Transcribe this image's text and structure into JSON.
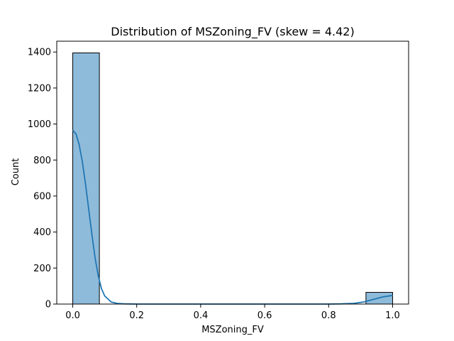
{
  "chart_data": {
    "type": "bar",
    "title": "Distribution of MSZoning_FV (skew = 4.42)",
    "xlabel": "MSZoning_FV",
    "ylabel": "Count",
    "xlim": [
      -0.05,
      1.05
    ],
    "ylim": [
      0,
      1460
    ],
    "grid": false,
    "bins": [
      {
        "x0": 0.0,
        "x1": 0.0833,
        "count": 1395
      },
      {
        "x0": 0.9167,
        "x1": 1.0,
        "count": 65
      }
    ],
    "kde": {
      "x": [
        0.0,
        0.01,
        0.02,
        0.03,
        0.04,
        0.05,
        0.06,
        0.07,
        0.08,
        0.09,
        0.1,
        0.12,
        0.14,
        0.16,
        0.2,
        0.3,
        0.5,
        0.7,
        0.8,
        0.84,
        0.88,
        0.91,
        0.94,
        0.97,
        1.0
      ],
      "y": [
        965,
        945,
        885,
        790,
        665,
        525,
        385,
        255,
        155,
        85,
        45,
        12,
        3,
        1,
        0,
        0,
        0,
        0,
        0,
        1,
        4,
        12,
        26,
        40,
        48
      ]
    },
    "xticks": [
      0.0,
      0.2,
      0.4,
      0.6,
      0.8,
      1.0
    ],
    "xtick_labels": [
      "0.0",
      "0.2",
      "0.4",
      "0.6",
      "0.8",
      "1.0"
    ],
    "yticks": [
      0,
      200,
      400,
      600,
      800,
      1000,
      1200,
      1400
    ],
    "ytick_labels": [
      "0",
      "200",
      "400",
      "600",
      "800",
      "1000",
      "1200",
      "1400"
    ],
    "colors": {
      "bar_fill": "#8fbbda",
      "bar_edge": "#000000",
      "kde_line": "#1f77b4"
    }
  }
}
